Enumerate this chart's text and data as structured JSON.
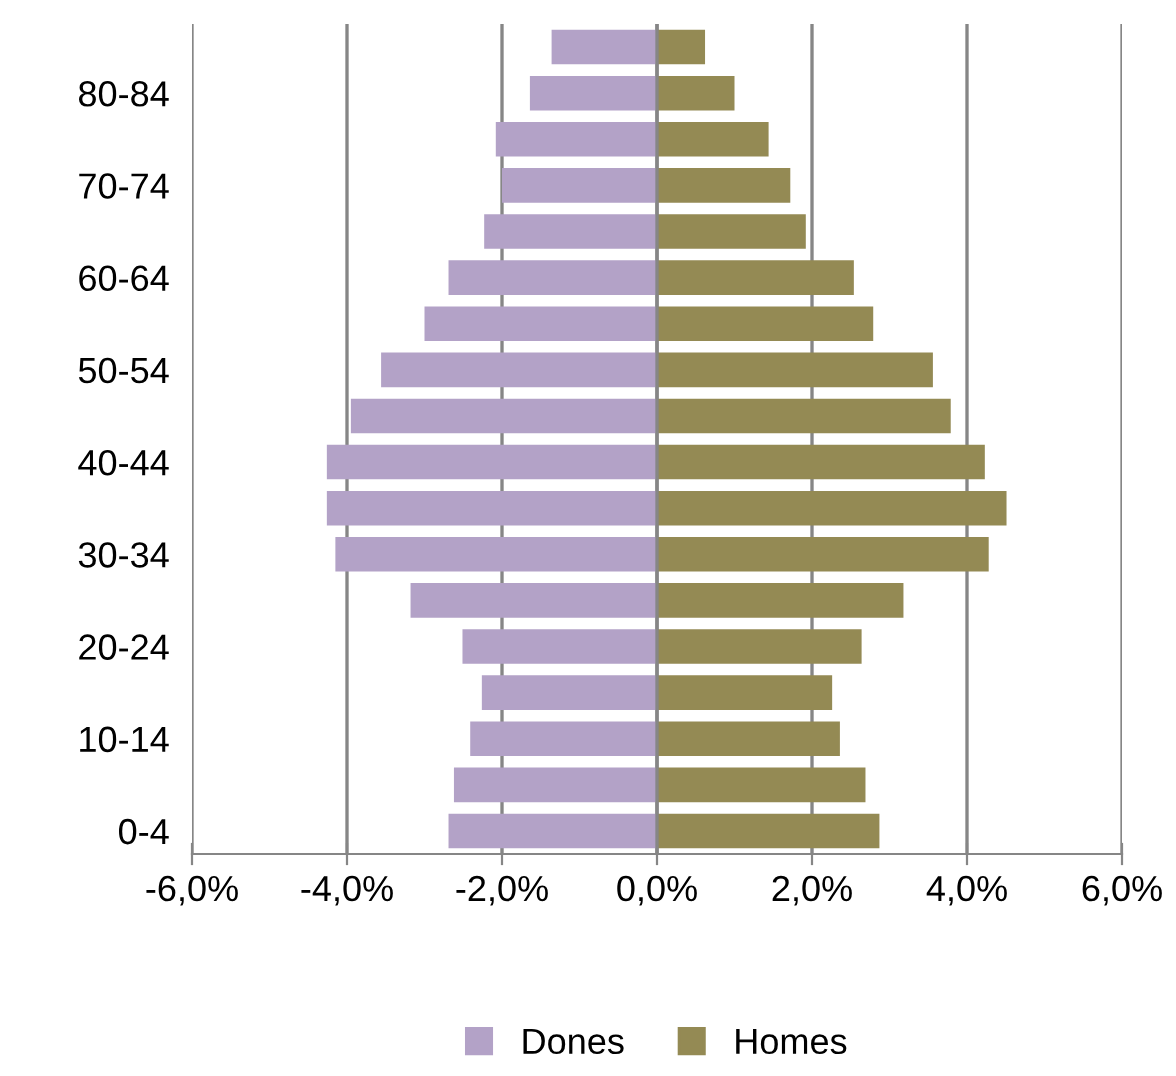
{
  "chart_data": {
    "type": "bar",
    "orientation": "horizontal",
    "stacked": true,
    "categories": [
      null,
      "80-84",
      null,
      "70-74",
      null,
      "60-64",
      null,
      "50-54",
      null,
      "40-44",
      null,
      "30-34",
      null,
      "20-24",
      null,
      "10-14",
      null,
      "0-4"
    ],
    "series": [
      {
        "name": "Dones",
        "color": "#b3a2c7",
        "values": [
          -1.36,
          -1.64,
          -2.08,
          -2.0,
          -2.23,
          -2.69,
          -3.0,
          -3.56,
          -3.95,
          -4.26,
          -4.26,
          -4.15,
          -3.18,
          -2.51,
          -2.26,
          -2.41,
          -2.62,
          -2.69
        ]
      },
      {
        "name": "Homes",
        "color": "#948a54",
        "values": [
          0.62,
          1.0,
          1.44,
          1.72,
          1.92,
          2.54,
          2.79,
          3.56,
          3.79,
          4.23,
          4.51,
          4.28,
          3.18,
          2.64,
          2.26,
          2.36,
          2.69,
          2.87
        ]
      }
    ],
    "xlim": [
      -6,
      6
    ],
    "xticks": [
      {
        "value": -6,
        "label": "-6,0%"
      },
      {
        "value": -4,
        "label": "-4,0%"
      },
      {
        "value": -2,
        "label": "-2,0%"
      },
      {
        "value": 0,
        "label": "0,0%"
      },
      {
        "value": 2,
        "label": "2,0%"
      },
      {
        "value": 4,
        "label": "4,0%"
      },
      {
        "value": 6,
        "label": "6,0%"
      }
    ],
    "grid": "x",
    "legend": "bottom"
  }
}
